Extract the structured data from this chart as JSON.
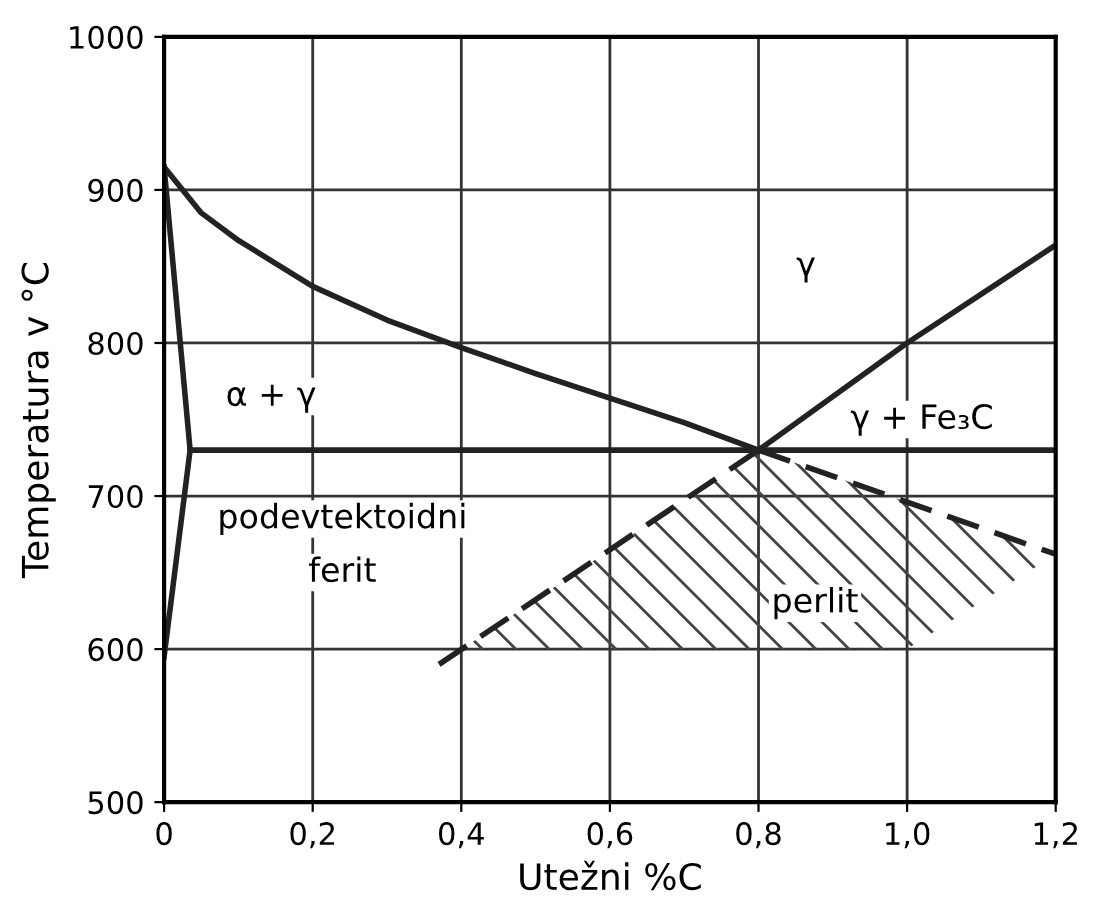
{
  "chart_data": {
    "type": "line",
    "xlabel": "Utežni %C",
    "ylabel": "Temperatura v °C",
    "xlim": [
      0,
      1.2
    ],
    "ylim": [
      500,
      1000
    ],
    "xticks": [
      0,
      {
        "value": 0.2,
        "label": "0,2"
      },
      {
        "value": 0.4,
        "label": "0,4"
      },
      {
        "value": 0.6,
        "label": "0,6"
      },
      {
        "value": 0.8,
        "label": "0,8"
      },
      {
        "value": 1.0,
        "label": "1,0"
      },
      {
        "value": 1.2,
        "label": "1,2"
      }
    ],
    "yticks": [
      500,
      600,
      700,
      800,
      900,
      1000
    ],
    "grid": true,
    "marker": "none",
    "series": [
      {
        "color": "#222222",
        "x": [
          0,
          0.05,
          0.1,
          0.2,
          0.3,
          0.4,
          0.5,
          0.6,
          0.7,
          0.8
        ],
        "values": [
          915,
          885,
          867,
          837,
          815,
          797,
          780,
          764,
          748,
          730
        ],
        "line_style": "solid"
      },
      {
        "color": "#222222",
        "x": [
          0.035,
          1.2
        ],
        "values": [
          730,
          730
        ],
        "line_style": "solid"
      },
      {
        "color": "#222222",
        "x": [
          0.8,
          1.0,
          1.2
        ],
        "values": [
          730,
          800,
          864
        ],
        "line_style": "solid"
      },
      {
        "color": "#222222",
        "x": [
          0,
          0.035,
          0
        ],
        "values": [
          915,
          730,
          595
        ],
        "line_style": "solid"
      },
      {
        "color": "#222222",
        "x": [
          0.37,
          0.8
        ],
        "values": [
          590,
          730
        ],
        "line_style": "dashed"
      },
      {
        "color": "#222222",
        "x": [
          0.8,
          1.2
        ],
        "values": [
          730,
          662
        ],
        "line_style": "dashed"
      }
    ],
    "annotations": [
      "γ",
      "α + γ",
      "γ + Fe₃C",
      "podevtektoidni",
      "ferit",
      "perlit"
    ]
  }
}
